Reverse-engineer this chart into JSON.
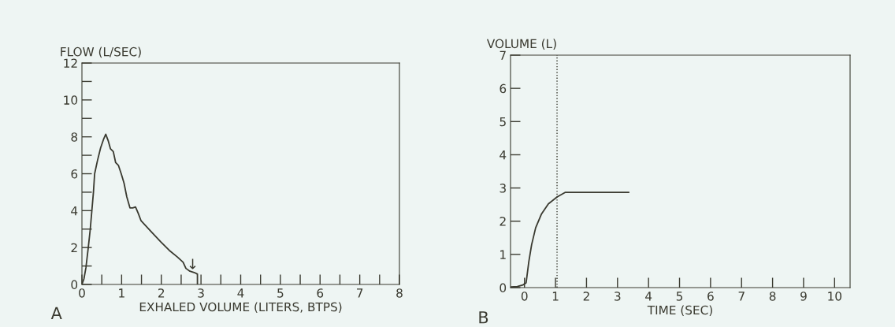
{
  "chart_data": [
    {
      "type": "line",
      "xlabel": "EXHALED VOLUME (LITERS, BTPS)",
      "ylabel": "FLOW (L/SEC)",
      "series": [
        {
          "color": "#3a3a30",
          "x": [
            0,
            0.05,
            0.1,
            0.16,
            0.21,
            0.25,
            0.29,
            0.32,
            0.39,
            0.47,
            0.55,
            0.6,
            0.66,
            0.72,
            0.79,
            0.85,
            0.92,
            0.99,
            1.06,
            1.13,
            1.21,
            1.28,
            1.35,
            1.42,
            1.49,
            1.6,
            1.77,
            1.99,
            2.2,
            2.41,
            2.55,
            2.62,
            2.72,
            2.84,
            2.91,
            2.91
          ],
          "values": [
            0,
            0.3,
            0.9,
            2.0,
            3.0,
            4.0,
            5.0,
            6.0,
            6.7,
            7.4,
            7.9,
            8.14,
            7.8,
            7.35,
            7.2,
            6.6,
            6.45,
            6.0,
            5.5,
            4.75,
            4.15,
            4.15,
            4.2,
            3.85,
            3.45,
            3.2,
            2.8,
            2.3,
            1.85,
            1.48,
            1.2,
            0.87,
            0.72,
            0.64,
            0.56,
            0
          ]
        }
      ],
      "xlim": [
        0,
        8
      ],
      "ylim": [
        0,
        12
      ],
      "xticks": [
        0,
        {
          "value": 0.5,
          "label": null
        },
        1,
        {
          "value": 1.5,
          "label": null
        },
        2,
        {
          "value": 2.5,
          "label": null
        },
        3,
        {
          "value": 3.5,
          "label": null
        },
        4,
        {
          "value": 4.5,
          "label": null
        },
        5,
        {
          "value": 5.5,
          "label": null
        },
        6,
        {
          "value": 6.5,
          "label": null
        },
        7,
        {
          "value": 7.5,
          "label": null
        },
        8
      ],
      "yticks": [
        0,
        {
          "value": 1,
          "label": null
        },
        2,
        {
          "value": 3,
          "label": null
        },
        4,
        {
          "value": 5,
          "label": null
        },
        6,
        {
          "value": 7,
          "label": null
        },
        8,
        {
          "value": 9,
          "label": null
        },
        10,
        {
          "value": 11,
          "label": null
        },
        12
      ],
      "annotations": [
        "A",
        {
          "text": "↓",
          "x": 2.79,
          "y": 0.67
        }
      ]
    },
    {
      "type": "line",
      "xlabel": "TIME (SEC)",
      "ylabel": "VOLUME (L)",
      "series": [
        {
          "color": "#3a3a30",
          "x": [
            -0.45,
            -0.23,
            -0.05,
            0.05,
            0.07,
            0.14,
            0.23,
            0.36,
            0.55,
            0.77,
            1.05,
            1.32,
            3.36
          ],
          "values": [
            0.02,
            0.03,
            0.08,
            0.14,
            0.27,
            0.78,
            1.29,
            1.8,
            2.22,
            2.52,
            2.73,
            2.87,
            2.87
          ]
        }
      ],
      "xlim": [
        -0.45,
        10.5
      ],
      "ylim": [
        0,
        7
      ],
      "xticks": [
        0,
        1,
        2,
        3,
        4,
        5,
        6,
        7,
        8,
        9,
        10
      ],
      "yticks": [
        0,
        1,
        2,
        3,
        4,
        5,
        6,
        7
      ],
      "ref_lines": [
        {
          "axis": "x",
          "value": 1.05,
          "line_style": "dotted",
          "color": "#3a3a30"
        }
      ],
      "annotations": [
        "B"
      ]
    }
  ]
}
